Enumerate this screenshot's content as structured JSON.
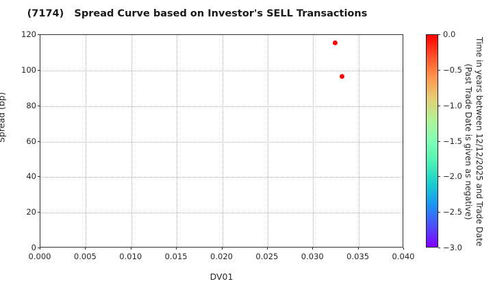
{
  "title": "(7174)   Spread Curve based on Investor's SELL Transactions",
  "chart_data": {
    "type": "scatter",
    "title": "(7174)   Spread Curve based on Investor's SELL Transactions",
    "xlabel": "DV01",
    "ylabel": "Spread (bp)",
    "xlim": [
      0.0,
      0.04
    ],
    "ylim": [
      0,
      120
    ],
    "grid": true,
    "grid_style": "dotted",
    "x_tick_values": [
      0.0,
      0.005,
      0.01,
      0.015,
      0.02,
      0.025,
      0.03,
      0.035,
      0.04
    ],
    "x_tick_labels": [
      "0.000",
      "0.005",
      "0.010",
      "0.015",
      "0.020",
      "0.025",
      "0.030",
      "0.035",
      "0.040"
    ],
    "y_tick_values": [
      0,
      20,
      40,
      60,
      80,
      100,
      120
    ],
    "y_tick_labels": [
      "0",
      "20",
      "40",
      "60",
      "80",
      "100",
      "120"
    ],
    "series": [
      {
        "name": "SELL transactions",
        "marker_color": "#ff0000",
        "points": [
          {
            "x": 0.0324,
            "y": 115.5,
            "time_years": 0.0
          },
          {
            "x": 0.0332,
            "y": 96.5,
            "time_years": 0.0
          }
        ]
      }
    ],
    "colorbar": {
      "label": "Time in years between 12/12/2025 and Trade Date\n(Past Trade Date is given as negative)",
      "tick_labels": [
        "0.0",
        "−0.5",
        "−1.0",
        "−1.5",
        "−2.0",
        "−2.5",
        "−3.0"
      ],
      "value_top": 0.0,
      "value_bottom": -3.0,
      "colormap": "rainbow",
      "gradient_stops_top_to_bottom": [
        "#ff0000",
        "#ff4f28",
        "#ff964f",
        "#e5ce74",
        "#b2f296",
        "#80ffb5",
        "#4df2b4",
        "#1acece",
        "#1a96f2",
        "#4d4ffc",
        "#8000ff"
      ]
    }
  }
}
